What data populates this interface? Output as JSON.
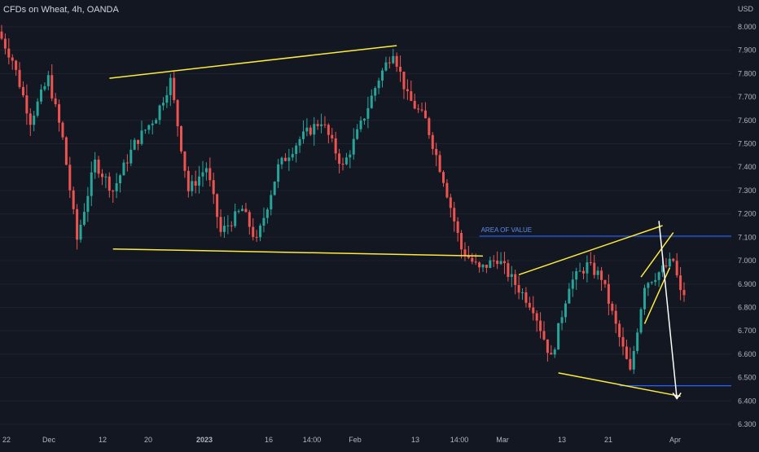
{
  "chart_data": {
    "type": "candlestick",
    "title": "CFDs on Wheat, 4h, OANDA",
    "currency": "USD",
    "y_ticks": [
      "8.000",
      "7.900",
      "7.800",
      "7.700",
      "7.600",
      "7.500",
      "7.400",
      "7.300",
      "7.200",
      "7.100",
      "7.000",
      "6.900",
      "6.800",
      "6.700",
      "6.600",
      "6.500",
      "6.400",
      "6.300"
    ],
    "x_ticks": [
      "22",
      "Dec",
      "12",
      "20",
      "2023",
      "16",
      "14:00",
      "Feb",
      "13",
      "14:00",
      "Mar",
      "13",
      "21",
      "Apr"
    ],
    "ylim": [
      6.28,
      8.08
    ],
    "price_path": [
      [
        0,
        7.98
      ],
      [
        4,
        7.86
      ],
      [
        9,
        7.6
      ],
      [
        14,
        7.78
      ],
      [
        18,
        7.52
      ],
      [
        22,
        7.09
      ],
      [
        27,
        7.42
      ],
      [
        32,
        7.3
      ],
      [
        38,
        7.5
      ],
      [
        44,
        7.62
      ],
      [
        48,
        7.77
      ],
      [
        53,
        7.3
      ],
      [
        58,
        7.4
      ],
      [
        62,
        7.12
      ],
      [
        68,
        7.22
      ],
      [
        72,
        7.08
      ],
      [
        78,
        7.4
      ],
      [
        84,
        7.52
      ],
      [
        90,
        7.6
      ],
      [
        96,
        7.4
      ],
      [
        101,
        7.58
      ],
      [
        106,
        7.78
      ],
      [
        110,
        7.9
      ],
      [
        114,
        7.7
      ],
      [
        119,
        7.6
      ],
      [
        124,
        7.35
      ],
      [
        129,
        7.05
      ],
      [
        134,
        6.96
      ],
      [
        139,
        7.01
      ],
      [
        144,
        6.9
      ],
      [
        149,
        6.8
      ],
      [
        154,
        6.58
      ],
      [
        159,
        6.9
      ],
      [
        164,
        6.98
      ],
      [
        168,
        6.93
      ],
      [
        172,
        6.72
      ],
      [
        176,
        6.52
      ],
      [
        180,
        6.9
      ],
      [
        184,
        6.95
      ],
      [
        188,
        7.0
      ],
      [
        190,
        6.86
      ]
    ],
    "colors": {
      "up": "#26a69a",
      "down": "#ef5350",
      "trendlines": "#ffeb3b",
      "levels": "#2962ff",
      "arrow": "#ffffff",
      "background": "#131722"
    },
    "horizontal_levels": [
      7.105,
      6.465
    ],
    "annotations": [
      {
        "text": "AREA OF VALUE",
        "price": 7.105
      }
    ],
    "drawings": [
      {
        "type": "trendline",
        "from": [
          30,
          7.78
        ],
        "to": [
          110,
          7.92
        ]
      },
      {
        "type": "trendline",
        "from": [
          31,
          7.05
        ],
        "to": [
          134,
          7.02
        ]
      },
      {
        "type": "trendline",
        "from": [
          144,
          6.94
        ],
        "to": [
          184,
          7.15
        ]
      },
      {
        "type": "trendline",
        "from": [
          155,
          6.52
        ],
        "to": [
          189,
          6.42
        ]
      },
      {
        "type": "wedge",
        "from": [
          178,
          6.93
        ],
        "to": [
          187,
          7.12
        ]
      },
      {
        "type": "wedge",
        "from": [
          179,
          6.73
        ],
        "to": [
          186,
          6.97
        ]
      },
      {
        "type": "arrow",
        "from": [
          183,
          7.17
        ],
        "to": [
          188,
          6.41
        ]
      }
    ]
  }
}
